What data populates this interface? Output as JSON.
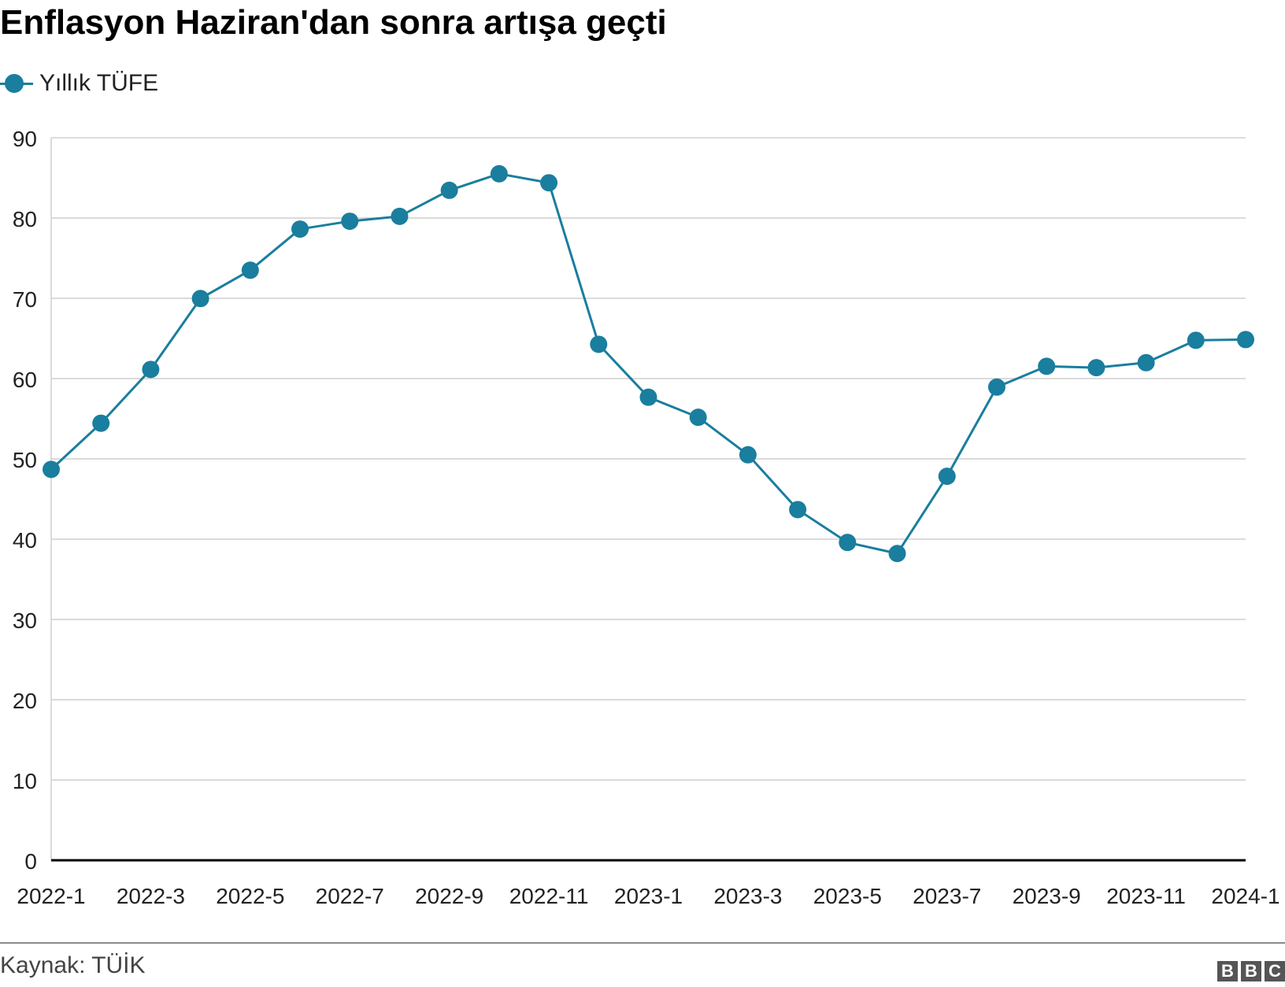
{
  "title": "Enflasyon Haziran'dan sonra artışa geçti",
  "legend": {
    "label": "Yıllık TÜFE"
  },
  "colors": {
    "series": "#1a7e9e",
    "grid": "#cfcfcf",
    "axis": "#000000"
  },
  "chart_data": {
    "type": "line",
    "title": "Enflasyon Haziran'dan sonra artışa geçti",
    "xlabel": "",
    "ylabel": "",
    "ylim": [
      0,
      90
    ],
    "yticks": [
      0,
      10,
      20,
      30,
      40,
      50,
      60,
      70,
      80,
      90
    ],
    "xtick_labels": [
      "2022-1",
      "2022-3",
      "2022-5",
      "2022-7",
      "2022-9",
      "2022-11",
      "2023-1",
      "2023-3",
      "2023-5",
      "2023-7",
      "2023-9",
      "2023-11",
      "2024-1"
    ],
    "categories": [
      "2022-1",
      "2022-2",
      "2022-3",
      "2022-4",
      "2022-5",
      "2022-6",
      "2022-7",
      "2022-8",
      "2022-9",
      "2022-10",
      "2022-11",
      "2022-12",
      "2023-1",
      "2023-2",
      "2023-3",
      "2023-4",
      "2023-5",
      "2023-6",
      "2023-7",
      "2023-8",
      "2023-9",
      "2023-10",
      "2023-11",
      "2023-12",
      "2024-1"
    ],
    "series": [
      {
        "name": "Yıllık TÜFE",
        "values": [
          48.69,
          54.44,
          61.14,
          69.97,
          73.5,
          78.62,
          79.6,
          80.21,
          83.45,
          85.51,
          84.39,
          64.27,
          57.68,
          55.18,
          50.51,
          43.68,
          39.59,
          38.21,
          47.83,
          58.94,
          61.53,
          61.36,
          61.98,
          64.77,
          64.86
        ]
      }
    ],
    "grid": true,
    "legend_position": "top-left"
  },
  "footer": {
    "source": "Kaynak: TÜİK",
    "logo_letters": [
      "B",
      "B",
      "C"
    ]
  }
}
